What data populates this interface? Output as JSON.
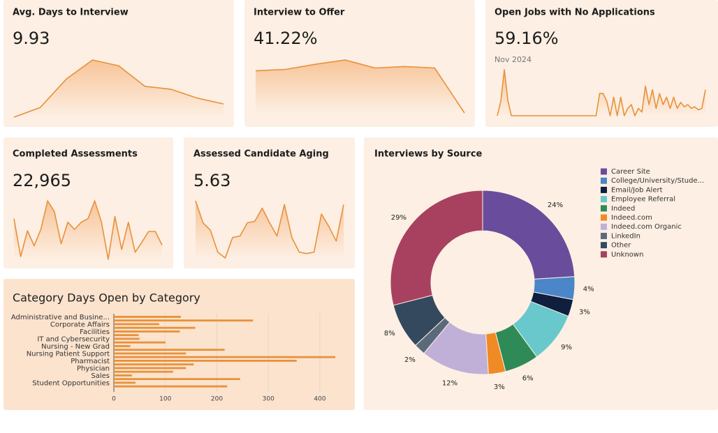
{
  "chart_data": [
    {
      "type": "line",
      "title": "Avg. Days to Interview",
      "kpi": "9.93",
      "color": "#e8913a",
      "values": [
        5,
        18,
        57,
        83,
        75,
        47,
        43,
        31,
        23
      ]
    },
    {
      "type": "line",
      "title": "Interview to Offer",
      "kpi": "41.22%",
      "color": "#e8913a",
      "values": [
        68,
        70,
        77,
        83,
        72,
        74,
        72,
        10
      ]
    },
    {
      "type": "line",
      "title": "Open Jobs with No Applications",
      "kpi": "59.16%",
      "subtitle": "Nov 2024",
      "color": "#e8913a",
      "values": [
        0,
        20,
        62,
        20,
        0,
        0,
        0,
        0,
        0,
        0,
        0,
        0,
        0,
        0,
        0,
        0,
        0,
        0,
        0,
        0,
        0,
        0,
        0,
        0,
        0,
        0,
        0,
        0,
        0,
        30,
        30,
        20,
        0,
        25,
        0,
        25,
        0,
        10,
        15,
        0,
        10,
        5,
        40,
        15,
        35,
        10,
        30,
        15,
        25,
        10,
        25,
        10,
        18,
        12,
        15,
        10,
        12,
        8,
        10,
        35
      ]
    },
    {
      "type": "line",
      "title": "Completed Assessments",
      "kpi": "22,965",
      "color": "#e8913a",
      "values": [
        65,
        12,
        48,
        27,
        50,
        90,
        75,
        30,
        60,
        50,
        60,
        65,
        90,
        60,
        8,
        68,
        22,
        60,
        18,
        32,
        47,
        47,
        28
      ]
    },
    {
      "type": "line",
      "title": "Assessed Candidate Aging",
      "kpi": "5.63",
      "color": "#e8913a",
      "values": [
        90,
        60,
        50,
        20,
        12,
        40,
        42,
        60,
        62,
        80,
        60,
        42,
        85,
        40,
        20,
        18,
        20,
        72,
        55,
        35,
        85
      ]
    },
    {
      "type": "hbar",
      "title": "Category Days Open by Category",
      "color": "#e8913a",
      "grid": true,
      "categories": [
        "Administrative and Busine...",
        null,
        "Corporate Affairs",
        null,
        "Facilities",
        null,
        "IT and Cybersecurity",
        null,
        "Nursing - New Grad",
        null,
        "Nursing Patient Support",
        null,
        "Pharmacist",
        null,
        "Physician",
        null,
        "Sales",
        null,
        "Student Opportunities",
        null
      ],
      "values": [
        130,
        270,
        88,
        158,
        128,
        48,
        50,
        100,
        32,
        215,
        140,
        430,
        355,
        155,
        140,
        115,
        35,
        245,
        42,
        220
      ],
      "xlim": [
        0,
        440
      ],
      "xticks": [
        0,
        100,
        200,
        300,
        400
      ]
    },
    {
      "type": "donut",
      "title": "Interviews by Source",
      "legend": "top-right",
      "series": [
        {
          "name": "Career Site",
          "color": "#6a4c9c",
          "values": [
            24
          ],
          "value_labels": [
            "24%"
          ]
        },
        {
          "name": "College/University/Stude...",
          "color": "#4a86c8",
          "values": [
            4
          ],
          "value_labels": [
            "4%"
          ]
        },
        {
          "name": "Email/Job Alert",
          "color": "#0f1f3d",
          "values": [
            3
          ],
          "value_labels": [
            "3%"
          ]
        },
        {
          "name": "Employee Referral",
          "color": "#68c8cc",
          "values": [
            9
          ],
          "value_labels": [
            "9%"
          ]
        },
        {
          "name": "Indeed",
          "color": "#2e8b57",
          "values": [
            6
          ],
          "value_labels": [
            "6%"
          ]
        },
        {
          "name": "Indeed.com",
          "color": "#f08a24",
          "values": [
            3
          ],
          "value_labels": [
            "3%"
          ]
        },
        {
          "name": "Indeed.com Organic",
          "color": "#c0b0d8",
          "values": [
            12
          ],
          "value_labels": [
            "12%"
          ]
        },
        {
          "name": "LinkedIn",
          "color": "#5a6a7a",
          "values": [
            2
          ],
          "value_labels": [
            "2%"
          ]
        },
        {
          "name": "Other",
          "color": "#34495e",
          "values": [
            8
          ],
          "value_labels": [
            "8%"
          ]
        },
        {
          "name": "Unknown",
          "color": "#a8415f",
          "values": [
            29
          ],
          "value_labels": [
            "29%"
          ]
        }
      ]
    }
  ]
}
